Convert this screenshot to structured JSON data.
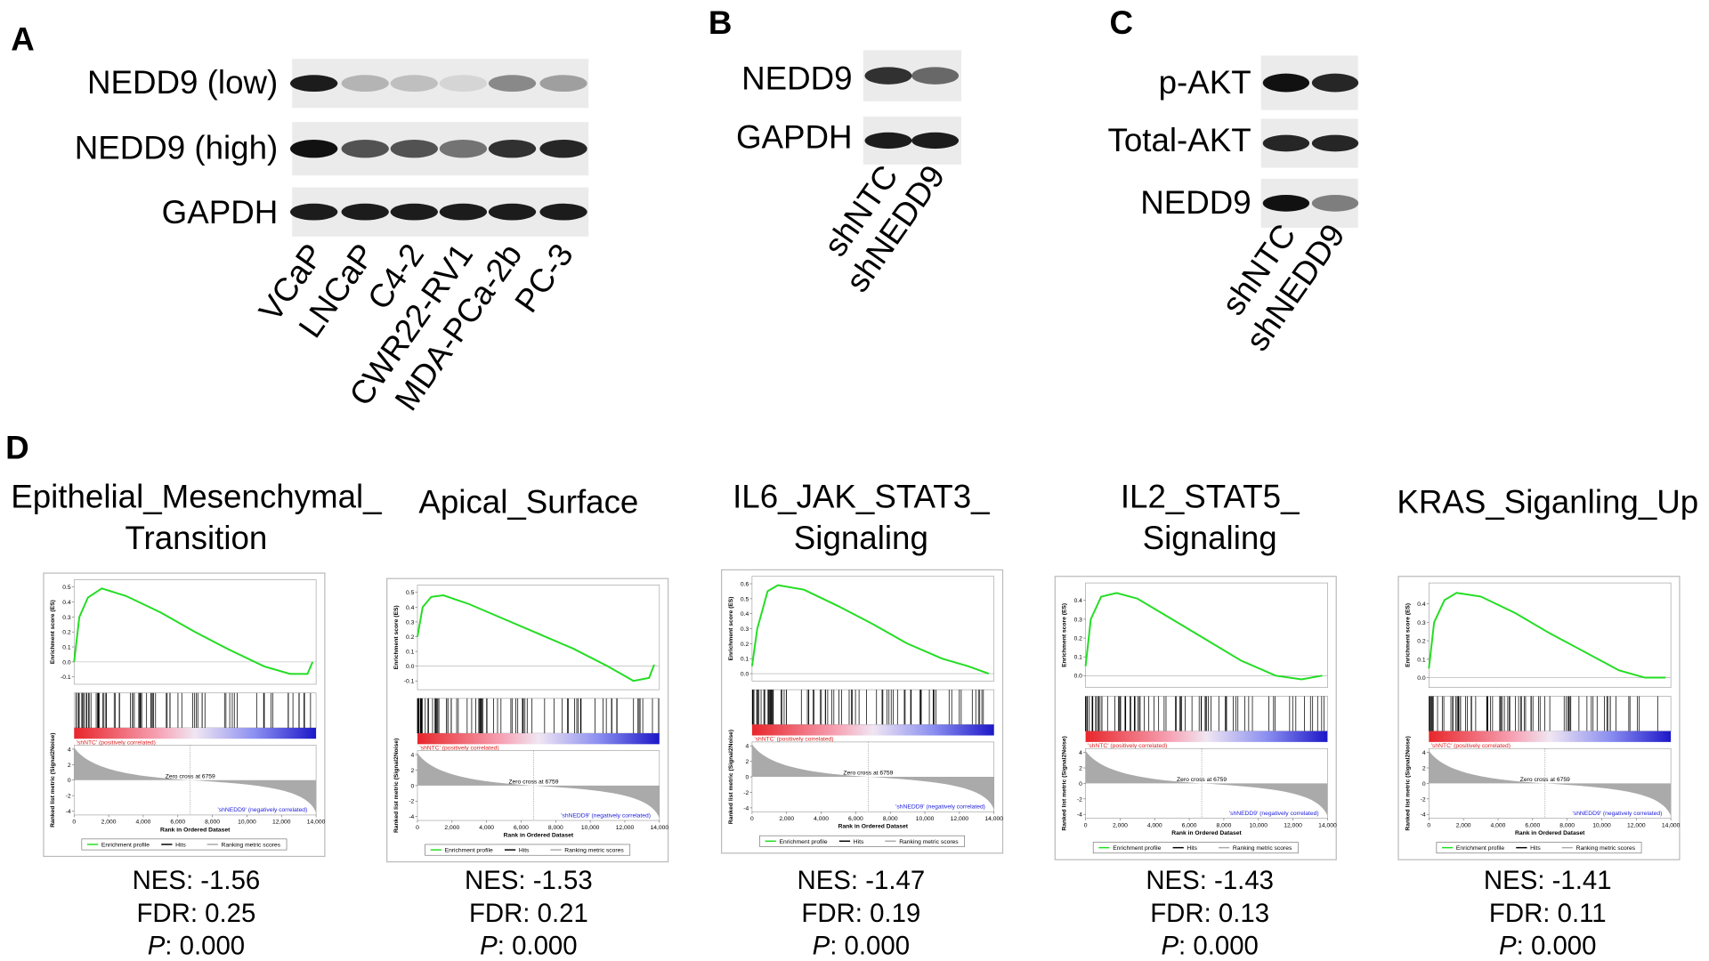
{
  "panels": {
    "A": {
      "label": "A",
      "rows": [
        "NEDD9 (low)",
        "NEDD9 (high)",
        "GAPDH"
      ],
      "lanes": [
        "VCaP",
        "LNCaP",
        "C4-2",
        "CWR22-RV1",
        "MDA-PCa-2b",
        "PC-3"
      ]
    },
    "B": {
      "label": "B",
      "rows": [
        "NEDD9",
        "GAPDH"
      ],
      "lanes": [
        "shNTC",
        "shNEDD9"
      ]
    },
    "C": {
      "label": "C",
      "rows": [
        "p-AKT",
        "Total-AKT",
        "NEDD9"
      ],
      "lanes": [
        "shNTC",
        "shNEDD9"
      ]
    },
    "D": {
      "label": "D",
      "common": {
        "es_axis": "Enrichment score (ES)",
        "metric_axis": "Ranked list metric (Signal2Noise)",
        "x_axis": "Rank in Ordered Dataset",
        "xlim": [
          0,
          14000
        ],
        "xticks": [
          0,
          {
            "value": 2000,
            "label": "2,000"
          },
          {
            "value": 4000,
            "label": "4,000"
          },
          {
            "value": 6000,
            "label": "6,000"
          },
          {
            "value": 8000,
            "label": "8,000"
          },
          {
            "value": 10000,
            "label": "10,000"
          },
          {
            "value": 12000,
            "label": "12,000"
          },
          {
            "value": 14000,
            "label": "14,000"
          }
        ],
        "metric_ylim": [
          -4.5,
          4.5
        ],
        "metric_yticks": [
          4,
          2,
          0,
          -2,
          -4
        ],
        "pos": "'shNTC' (positively correlated)",
        "neg": "'shNEDD9' (negatively correlated)",
        "zero": "Zero cross at 6759",
        "legend": [
          "Enrichment profile",
          "Hits",
          "Ranking metric scores"
        ]
      },
      "plots": [
        {
          "title": [
            "Epithelial_Mesenchymal_",
            "Transition"
          ],
          "ylim": [
            -0.12,
            0.52
          ],
          "yticks": [
            0.5,
            0.4,
            0.3,
            0.2,
            0.1,
            {
              "value": 0,
              "label": "0.0"
            },
            -0.1
          ],
          "es_x": [
            0,
            300,
            800,
            1600,
            3000,
            5000,
            7000,
            9000,
            11000,
            12500,
            13500,
            13800
          ],
          "es_y": [
            0,
            0.3,
            0.43,
            0.49,
            0.44,
            0.33,
            0.2,
            0.08,
            -0.03,
            -0.08,
            -0.08,
            0
          ],
          "nes": "NES: -1.56",
          "fdr": "FDR: 0.25",
          "p_label": "P",
          "p_value": ": 0.000"
        },
        {
          "title": [
            "Apical_Surface"
          ],
          "ylim": [
            -0.13,
            0.52
          ],
          "yticks": [
            0.5,
            0.4,
            0.3,
            0.2,
            0.1,
            {
              "value": 0,
              "label": "0.0"
            },
            -0.1
          ],
          "es_x": [
            0,
            300,
            800,
            1500,
            3000,
            5000,
            7000,
            9000,
            11000,
            12500,
            13400,
            13700
          ],
          "es_y": [
            0.2,
            0.4,
            0.47,
            0.48,
            0.42,
            0.32,
            0.22,
            0.12,
            0,
            -0.1,
            -0.08,
            0.01
          ],
          "nes": "NES: -1.53",
          "fdr": "FDR: 0.21",
          "p_label": "P",
          "p_value": ": 0.000"
        },
        {
          "title": [
            "IL6_JAK_STAT3_",
            "Signaling"
          ],
          "ylim": [
            -0.02,
            0.62
          ],
          "yticks": [
            0.6,
            0.5,
            0.4,
            0.3,
            0.2,
            0.1,
            {
              "value": 0,
              "label": "0.0"
            }
          ],
          "es_x": [
            0,
            300,
            900,
            1500,
            3000,
            5000,
            7000,
            9000,
            11000,
            12500,
            13700
          ],
          "es_y": [
            0.05,
            0.3,
            0.55,
            0.59,
            0.56,
            0.45,
            0.33,
            0.2,
            0.1,
            0.05,
            0
          ],
          "nes": "NES: -1.47",
          "fdr": "FDR: 0.19",
          "p_label": "P",
          "p_value": ": 0.000"
        },
        {
          "title": [
            "IL2_STAT5_",
            "Signaling"
          ],
          "ylim": [
            -0.04,
            0.47
          ],
          "yticks": [
            0.4,
            0.3,
            0.2,
            0.1,
            {
              "value": 0,
              "label": "0.0"
            }
          ],
          "es_x": [
            0,
            300,
            900,
            1800,
            3000,
            5000,
            7000,
            9000,
            11000,
            12500,
            13700
          ],
          "es_y": [
            0.05,
            0.3,
            0.42,
            0.44,
            0.41,
            0.3,
            0.19,
            0.08,
            0,
            -0.02,
            0
          ],
          "nes": "NES: -1.43",
          "fdr": "FDR: 0.13",
          "p_label": "P",
          "p_value": ": 0.000"
        },
        {
          "title": [
            "KRAS_Siganling_Up"
          ],
          "ylim": [
            -0.03,
            0.49
          ],
          "yticks": [
            0.4,
            0.3,
            0.2,
            0.1,
            {
              "value": 0,
              "label": "0.0"
            }
          ],
          "es_x": [
            0,
            300,
            900,
            1600,
            3000,
            5000,
            7000,
            9000,
            11000,
            12500,
            13700
          ],
          "es_y": [
            0.05,
            0.3,
            0.42,
            0.46,
            0.44,
            0.35,
            0.24,
            0.14,
            0.04,
            0,
            0
          ],
          "nes": "NES: -1.41",
          "fdr": "FDR: 0.11",
          "p_label": "P",
          "p_value": ": 0.000"
        }
      ]
    }
  }
}
